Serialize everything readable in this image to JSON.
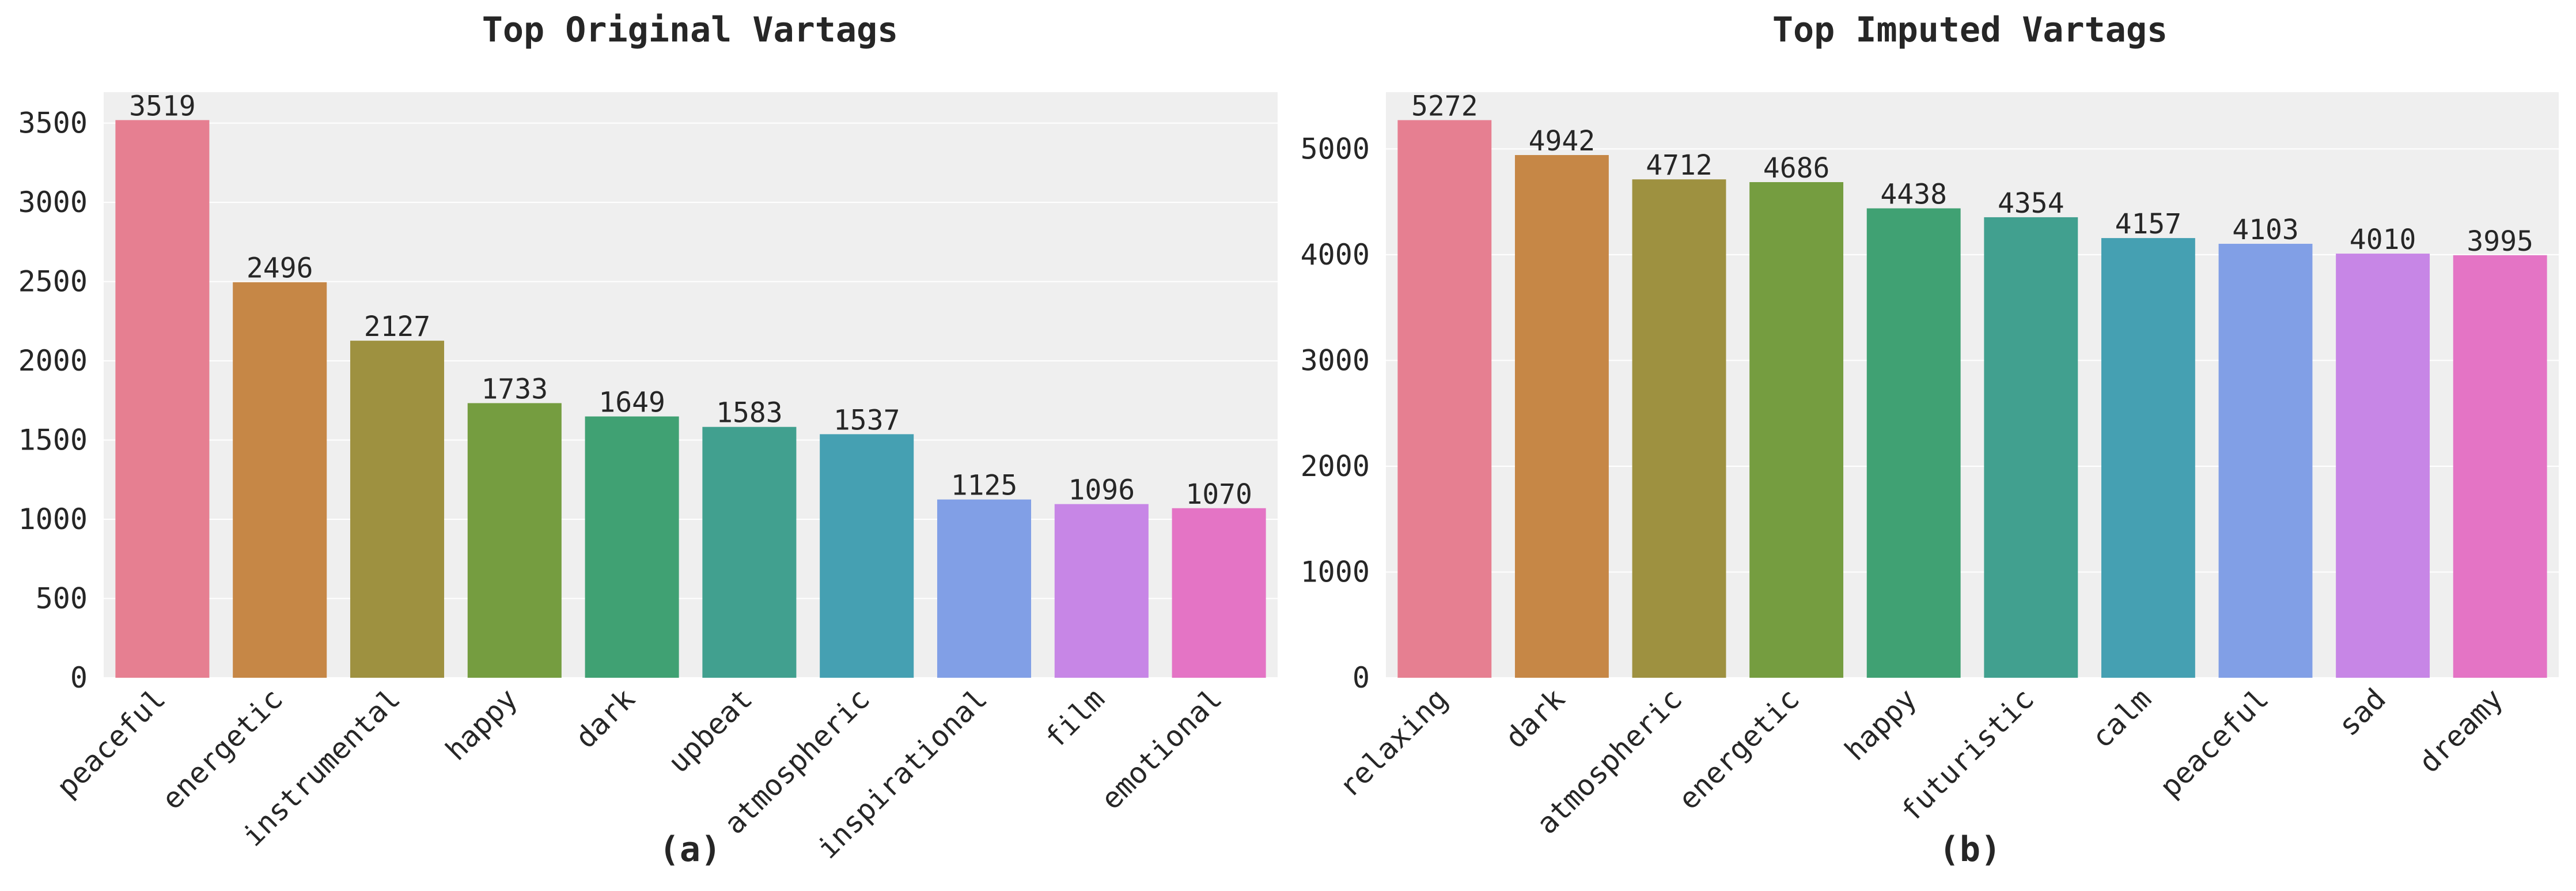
{
  "chart_data": [
    {
      "type": "bar",
      "title": "Top Original Vartags",
      "sublabel": "(a)",
      "xlabel": "",
      "ylabel": "",
      "categories": [
        "peaceful",
        "energetic",
        "instrumental",
        "happy",
        "dark",
        "upbeat",
        "atmospheric",
        "inspirational",
        "film",
        "emotional"
      ],
      "values": [
        3519,
        2496,
        2127,
        1733,
        1649,
        1583,
        1537,
        1125,
        1096,
        1070
      ],
      "yticks": [
        0,
        500,
        1000,
        1500,
        2000,
        2500,
        3000,
        3500
      ],
      "ylim": [
        0,
        3695
      ],
      "grid": true,
      "colors": [
        "#e67f91",
        "#c68746",
        "#9e9140",
        "#759d40",
        "#40a173",
        "#41a08f",
        "#45a0b2",
        "#819fe6",
        "#c786e6",
        "#e474c5"
      ]
    },
    {
      "type": "bar",
      "title": "Top Imputed Vartags",
      "sublabel": "(b)",
      "xlabel": "",
      "ylabel": "",
      "categories": [
        "relaxing",
        "dark",
        "atmospheric",
        "energetic",
        "happy",
        "futuristic",
        "calm",
        "peaceful",
        "sad",
        "dreamy"
      ],
      "values": [
        5272,
        4942,
        4712,
        4686,
        4438,
        4354,
        4157,
        4103,
        4010,
        3995
      ],
      "yticks": [
        0,
        1000,
        2000,
        3000,
        4000,
        5000
      ],
      "ylim": [
        0,
        5536
      ],
      "grid": true,
      "colors": [
        "#e67f91",
        "#c68746",
        "#9e9140",
        "#759d40",
        "#40a173",
        "#41a08f",
        "#45a0b2",
        "#819fe6",
        "#c786e6",
        "#e474c5"
      ]
    }
  ]
}
